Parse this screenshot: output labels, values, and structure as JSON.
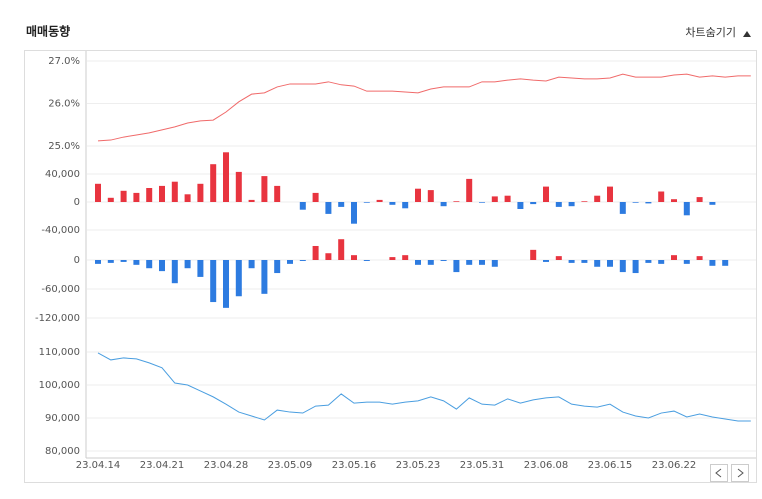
{
  "header": {
    "title": "매매동향",
    "toggle": "차트숨기기"
  },
  "chart_data": [
    {
      "type": "line",
      "color": "#f06a6a",
      "ylim": [
        25,
        27.2
      ],
      "yticks": [
        {
          "value": 25,
          "label": "25.0%"
        },
        {
          "value": 26,
          "label": "26.0%"
        },
        {
          "value": 27,
          "label": "27.0%"
        }
      ],
      "values": [
        25.12,
        25.14,
        25.21,
        25.26,
        25.31,
        25.38,
        25.45,
        25.54,
        25.59,
        25.61,
        25.8,
        26.04,
        26.22,
        26.25,
        26.39,
        26.46,
        26.46,
        26.46,
        26.51,
        26.44,
        26.41,
        26.29,
        26.29,
        26.29,
        26.27,
        26.25,
        26.34,
        26.39,
        26.39,
        26.39,
        26.51,
        26.51,
        26.55,
        26.58,
        26.55,
        26.53,
        26.62,
        26.6,
        26.58,
        26.58,
        26.6,
        26.69,
        26.62,
        26.62,
        26.62,
        26.67,
        26.69,
        26.62,
        26.65,
        26.62,
        26.65,
        26.65
      ]
    },
    {
      "type": "bar",
      "color": "#e8343f",
      "negative_color": "#2d7be0",
      "ylim": [
        -50000,
        75000
      ],
      "yticks": [
        {
          "value": -40000,
          "label": "-40,000"
        },
        0,
        {
          "value": 40000,
          "label": "40,000"
        }
      ],
      "values": [
        26000,
        6000,
        16000,
        13000,
        20000,
        23000,
        29000,
        11000,
        26000,
        54000,
        71000,
        43000,
        3000,
        37000,
        23000,
        0,
        -11000,
        13000,
        -17000,
        -7000,
        -31000,
        -1000,
        3000,
        -4000,
        -9000,
        19000,
        17000,
        -6000,
        1000,
        33000,
        -1000,
        8000,
        9000,
        -10000,
        -3000,
        22000,
        -7000,
        -6000,
        1000,
        9000,
        22000,
        -17000,
        -1000,
        -2000,
        15000,
        4000,
        -19000,
        7000,
        -4000,
        0,
        0,
        0
      ]
    },
    {
      "type": "bar",
      "color": "#e8343f",
      "negative_color": "#2d7be0",
      "ylim": [
        -135000,
        45000
      ],
      "yticks": [
        {
          "value": -120000,
          "label": "-120,000"
        },
        {
          "value": -60000,
          "label": "-60,000"
        },
        0
      ],
      "values": [
        -8000,
        -6000,
        -4000,
        -10000,
        -17000,
        -23000,
        -48000,
        -17000,
        -35000,
        -87000,
        -99000,
        -75000,
        -17000,
        -70000,
        -27000,
        -8000,
        -2000,
        29000,
        14000,
        43000,
        10000,
        -2000,
        0,
        6000,
        10000,
        -10000,
        -10000,
        -2000,
        -25000,
        -10000,
        -10000,
        -14000,
        0,
        0,
        21000,
        -4000,
        8000,
        -6000,
        -6000,
        -14000,
        -14000,
        -25000,
        -27000,
        -6000,
        -8000,
        10000,
        -8000,
        8000,
        -12000,
        -12000,
        0,
        0
      ]
    },
    {
      "type": "line",
      "color": "#4a9ee0",
      "ylim": [
        80000,
        113000
      ],
      "yticks": [
        {
          "value": 80000,
          "label": "80,000"
        },
        {
          "value": 90000,
          "label": "90,000"
        },
        {
          "value": 100000,
          "label": "100,000"
        },
        {
          "value": 110000,
          "label": "110,000"
        }
      ],
      "categories": [
        "23.04.14",
        null,
        null,
        null,
        null,
        "23.04.21",
        null,
        null,
        null,
        null,
        "23.04.28",
        null,
        null,
        null,
        null,
        "23.05.09",
        null,
        null,
        null,
        null,
        "23.05.16",
        null,
        null,
        null,
        null,
        "23.05.23",
        null,
        null,
        null,
        null,
        "23.05.31",
        null,
        null,
        null,
        null,
        "23.06.08",
        null,
        null,
        null,
        null,
        "23.06.15",
        null,
        null,
        null,
        null,
        "23.06.22",
        null,
        null,
        null,
        null,
        null,
        null
      ],
      "values": [
        109700,
        107600,
        108200,
        107900,
        106700,
        105200,
        100600,
        100000,
        98200,
        96400,
        94200,
        91800,
        90600,
        89400,
        92400,
        91800,
        91500,
        93600,
        93900,
        97300,
        94500,
        94800,
        94800,
        94200,
        94800,
        95200,
        96400,
        95200,
        92700,
        96100,
        94200,
        93900,
        95800,
        94500,
        95500,
        96100,
        96400,
        94200,
        93600,
        93300,
        94200,
        91800,
        90600,
        90000,
        91500,
        92100,
        90300,
        91200,
        90300,
        89700,
        89100,
        89100
      ]
    }
  ]
}
